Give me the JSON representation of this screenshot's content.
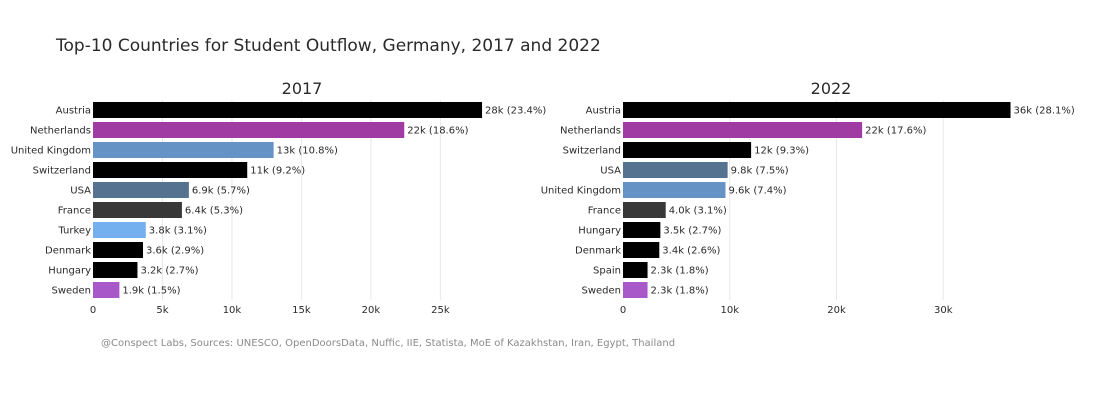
{
  "title": "Top-10 Countries for Student Outflow, Germany, 2017 and 2022",
  "footer": "@Conspect Labs, Sources: UNESCO, OpenDoorsData, Nuffic, IIE, Statista, MoE of Kazakhstan, Iran, Egypt, Thailand",
  "chart_data": [
    {
      "type": "bar",
      "orientation": "horizontal",
      "title": "2017",
      "categories": [
        "Austria",
        "Netherlands",
        "United Kingdom",
        "Switzerland",
        "USA",
        "France",
        "Turkey",
        "Denmark",
        "Hungary",
        "Sweden"
      ],
      "values": [
        28000,
        22400,
        13000,
        11100,
        6900,
        6400,
        3800,
        3600,
        3200,
        1900
      ],
      "labels": [
        "28k (23.4%)",
        "22k (18.6%)",
        "13k (10.8%)",
        "11k (9.2%)",
        "6.9k (5.7%)",
        "6.4k (5.3%)",
        "3.8k (3.1%)",
        "3.6k (2.9%)",
        "3.2k (2.7%)",
        "1.9k (1.5%)"
      ],
      "colors": [
        "#000000",
        "#a03ba3",
        "#6593c6",
        "#000000",
        "#557290",
        "#383838",
        "#74b0ef",
        "#000000",
        "#000000",
        "#a958c9"
      ],
      "xlim": [
        0,
        28500
      ],
      "ticks": [
        0,
        5000,
        10000,
        15000,
        20000,
        25000
      ],
      "tick_labels": [
        "0",
        "5k",
        "10k",
        "15k",
        "20k",
        "25k"
      ]
    },
    {
      "type": "bar",
      "orientation": "horizontal",
      "title": "2022",
      "categories": [
        "Austria",
        "Netherlands",
        "Switzerland",
        "USA",
        "United Kingdom",
        "France",
        "Hungary",
        "Denmark",
        "Spain",
        "Sweden"
      ],
      "values": [
        36300,
        22400,
        12000,
        9800,
        9600,
        4000,
        3500,
        3400,
        2300,
        2300
      ],
      "labels": [
        "36k (28.1%)",
        "22k (17.6%)",
        "12k (9.3%)",
        "9.8k (7.5%)",
        "9.6k (7.4%)",
        "4.0k (3.1%)",
        "3.5k (2.7%)",
        "3.4k (2.6%)",
        "2.3k (1.8%)",
        "2.3k (1.8%)"
      ],
      "colors": [
        "#000000",
        "#a03ba3",
        "#000000",
        "#557290",
        "#6593c6",
        "#383838",
        "#000000",
        "#000000",
        "#000000",
        "#a958c9"
      ],
      "xlim": [
        0,
        37000
      ],
      "ticks": [
        0,
        10000,
        20000,
        30000
      ],
      "tick_labels": [
        "0",
        "10k",
        "20k",
        "30k"
      ]
    }
  ]
}
